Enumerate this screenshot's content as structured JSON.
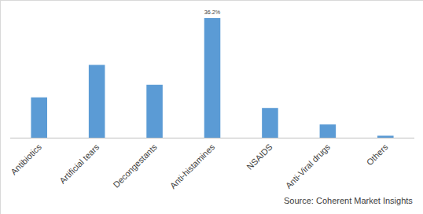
{
  "chart_data": {
    "type": "bar",
    "categories": [
      "Antibiotics",
      "Artificial tears",
      "Decongestants",
      "Anti-histamines",
      "NSAIDS",
      "Anti-Viral drugs",
      "Others"
    ],
    "values": [
      12.2,
      22.0,
      16.0,
      36.2,
      9.0,
      4.0,
      0.6
    ],
    "value_labels": [
      null,
      null,
      null,
      "36.2%",
      null,
      null,
      null
    ],
    "data_labels": true,
    "color": "#5b9bd5",
    "tick_labels": "x",
    "grid": false,
    "source": "Source: Coherent Market Insights"
  }
}
